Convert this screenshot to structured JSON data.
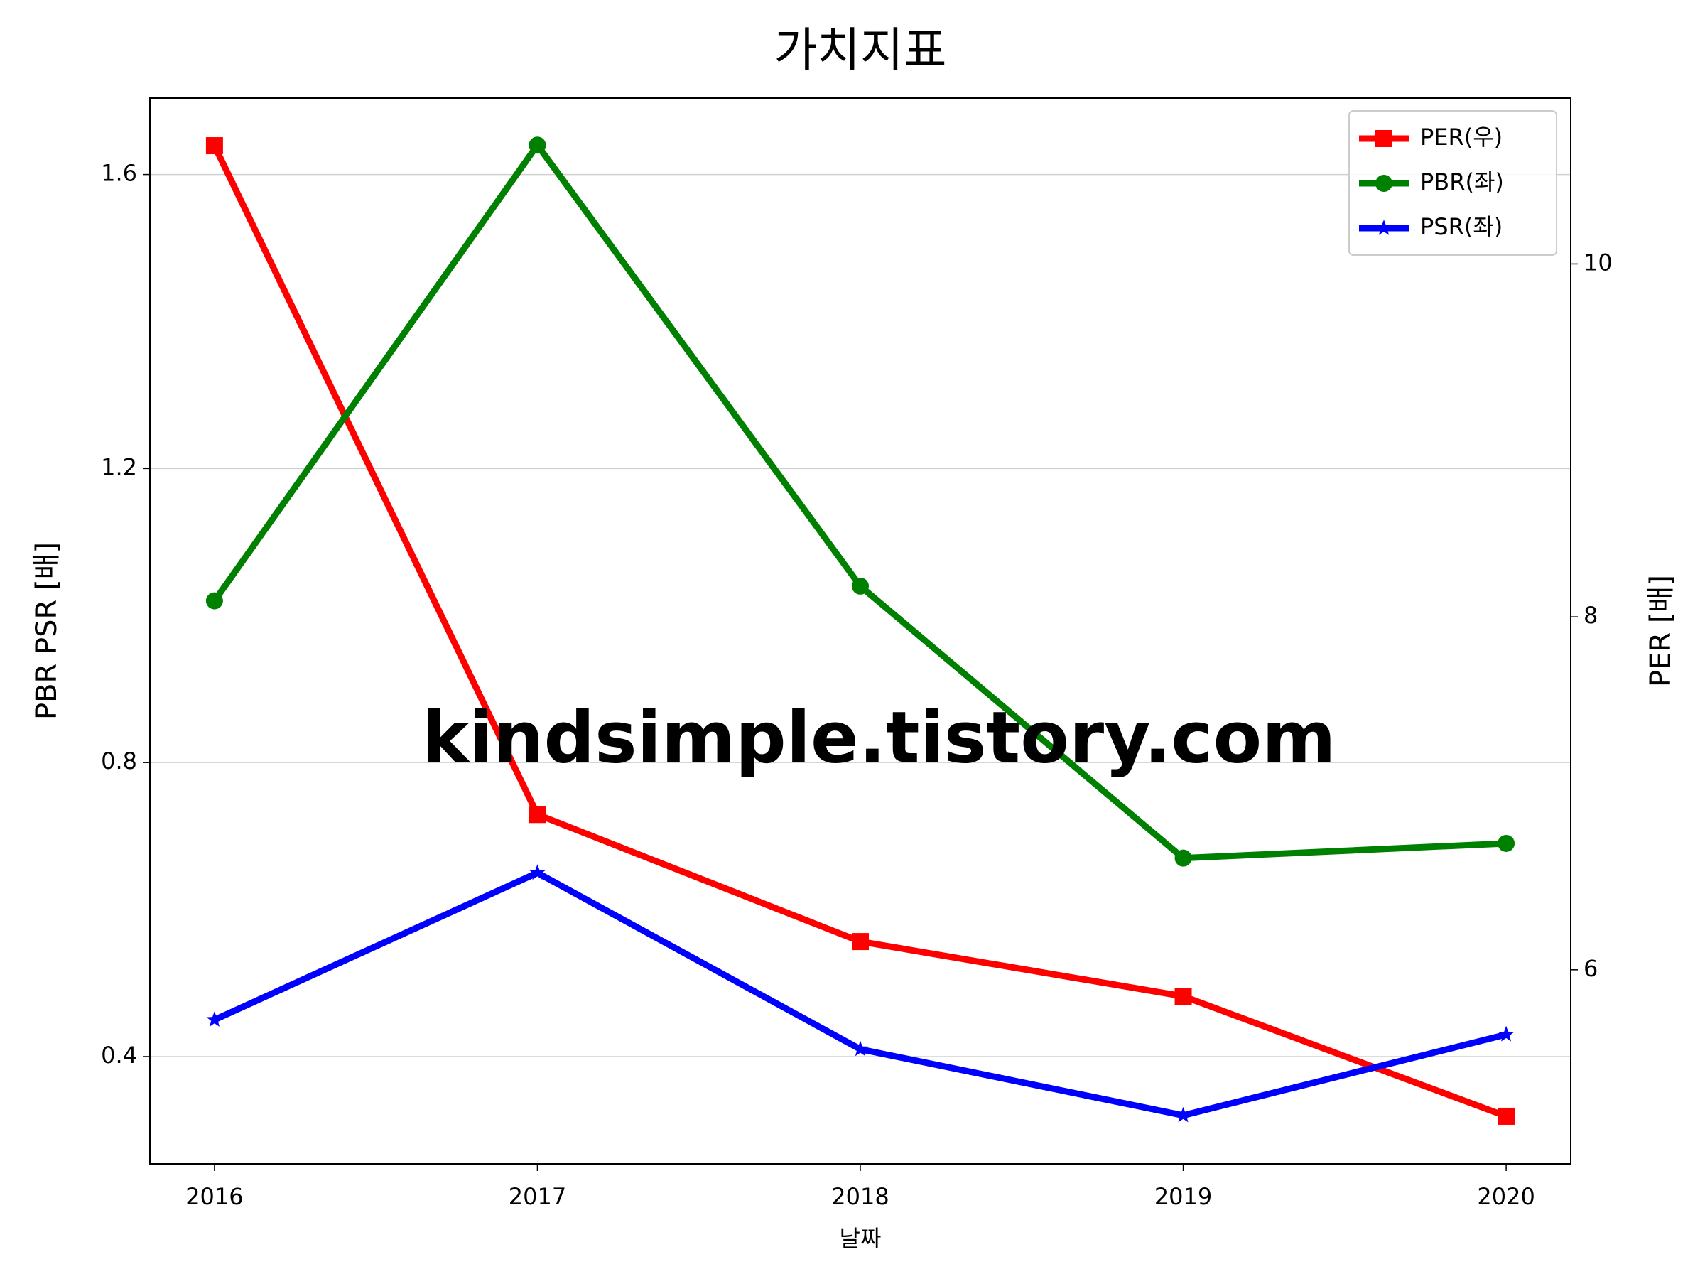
{
  "chart_data": {
    "type": "line",
    "title": "가치지표",
    "x_label": "날짜",
    "y_label": "PBR PSR [배]",
    "y_label_color": "#008000",
    "y2_label": "PER [배]",
    "y2_label_color": "#ff0000",
    "watermark": "kindsimple.tistory.com",
    "watermark_color": "#e3a6ec",
    "x": [
      2016,
      2017,
      2018,
      2019,
      2020
    ],
    "xlim": [
      2015.8,
      2020.2
    ],
    "xticks": [
      2016,
      2017,
      2018,
      2019,
      2020
    ],
    "ylim": [
      0.254,
      1.704
    ],
    "yticks": [
      0.4,
      0.8,
      1.2,
      1.6
    ],
    "y2lim": [
      4.9,
      10.94
    ],
    "y2ticks": [
      6,
      8,
      10
    ],
    "grid": true,
    "legend": "upper right",
    "series": [
      {
        "name": "PER(우)",
        "color": "#ff0000",
        "marker": "square",
        "axis": "y2",
        "values": [
          10.67,
          6.88,
          6.16,
          5.85,
          5.17
        ]
      },
      {
        "name": "PBR(좌)",
        "color": "#008000",
        "marker": "circle",
        "values": [
          1.02,
          1.64,
          1.04,
          0.67,
          0.69
        ]
      },
      {
        "name": "PSR(좌)",
        "color": "#0000ff",
        "marker": "star",
        "values": [
          0.45,
          0.65,
          0.41,
          0.32,
          0.43
        ]
      }
    ]
  }
}
